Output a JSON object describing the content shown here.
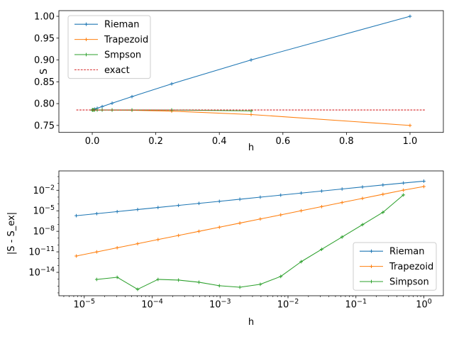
{
  "figure": {
    "background": "#ffffff"
  },
  "palette": {
    "blue": "#1f77b4",
    "orange": "#ff7f0e",
    "green": "#2ca02c",
    "red": "#d62728",
    "axis": "#000000",
    "legend_border": "#cccccc",
    "legend_face": "#ffffff"
  },
  "chart_data": [
    {
      "type": "line",
      "title": "",
      "xlabel": "h",
      "ylabel": "S",
      "xscale": "linear",
      "yscale": "linear",
      "xlim": [
        -0.105,
        1.105
      ],
      "ylim": [
        0.734,
        1.013
      ],
      "grid": false,
      "xticks": {
        "values": [
          0.0,
          0.2,
          0.4,
          0.6,
          0.8,
          1.0
        ],
        "labels": [
          "0.0",
          "0.2",
          "0.4",
          "0.6",
          "0.8",
          "1.0"
        ]
      },
      "yticks": {
        "values": [
          0.75,
          0.8,
          0.85,
          0.9,
          0.95,
          1.0
        ],
        "labels": [
          "0.75",
          "0.80",
          "0.85",
          "0.90",
          "0.95",
          "1.00"
        ]
      },
      "legend": {
        "position": "upper-left"
      },
      "series": [
        {
          "name": "Rieman",
          "color_key": "blue",
          "marker": "+",
          "dash": null,
          "x": [
            1,
            0.5,
            0.25,
            0.125,
            0.0625,
            0.03125,
            0.015625,
            0.0078125,
            0.00390625,
            0.001953125,
            0.0009765625,
            0.00048828125,
            0.000244140625,
            0.0001220703125,
            6.103515625e-05,
            3.0517578125e-05,
            1.52587890625e-05,
            7.62939453125e-06
          ],
          "y": [
            1.0,
            0.9,
            0.8452941,
            0.8159971,
            0.8008604,
            0.79317,
            0.7892943,
            0.7873488,
            0.7863741,
            0.7858863,
            0.7856423,
            0.7855202,
            0.7854592,
            0.7854287,
            0.7854134,
            0.7854058,
            0.785402,
            0.7854001
          ]
        },
        {
          "name": "Trapezoid",
          "color_key": "orange",
          "marker": "+",
          "dash": null,
          "x": [
            1,
            0.5,
            0.25,
            0.125,
            0.0625,
            0.03125,
            0.015625,
            0.0078125,
            0.00390625,
            0.001953125,
            0.0009765625,
            0.00048828125,
            0.000244140625,
            0.0001220703125,
            6.103515625e-05,
            3.0517578125e-05,
            1.52587890625e-05,
            7.62939453125e-06
          ],
          "y": [
            0.75,
            0.775,
            0.7827941,
            0.7847471,
            0.7852354,
            0.7853575,
            0.785388,
            0.7853956,
            0.7853975,
            0.785398,
            0.7853981,
            0.7853982,
            0.7853982,
            0.7853982,
            0.7853982,
            0.7853982,
            0.7853982,
            0.7853982
          ]
        },
        {
          "name": "Smpson",
          "color_key": "green",
          "marker": "+",
          "dash": null,
          "x": [
            0.5,
            0.25,
            0.125,
            0.0625,
            0.03125,
            0.015625,
            0.0078125,
            0.00390625,
            0.001953125,
            0.0009765625,
            0.00048828125,
            0.000244140625,
            0.0001220703125,
            6.103515625e-05,
            3.0517578125e-05,
            1.52587890625e-05
          ],
          "y": [
            0.7833333,
            0.7853922,
            0.7853981,
            0.7853982,
            0.7853982,
            0.7853982,
            0.7853982,
            0.7853982,
            0.7853982,
            0.7853982,
            0.7853982,
            0.7853982,
            0.7853982,
            0.7853982,
            0.7853982,
            0.7853982
          ]
        },
        {
          "name": "exact",
          "color_key": "red",
          "marker": null,
          "dash": [
            2.8,
            1.6
          ],
          "x": [
            -0.05,
            1.05
          ],
          "y": [
            0.7853982,
            0.7853982
          ]
        }
      ]
    },
    {
      "type": "line",
      "title": "",
      "xlabel": "h",
      "ylabel": "|S - S_ex|",
      "xscale": "log",
      "yscale": "log",
      "xlim": [
        4.231e-06,
        1.938
      ],
      "ylim": [
        3.8e-18,
        6.76
      ],
      "grid": false,
      "xticks": {
        "values": [
          1e-05,
          0.0001,
          0.001,
          0.01,
          0.1,
          1
        ],
        "labels": [
          "10^−5",
          "10^−4",
          "10^−3",
          "10^−2",
          "10^−1",
          "10^0"
        ]
      },
      "yticks": {
        "values": [
          0.01,
          1e-05,
          1e-08,
          1e-11,
          1e-14
        ],
        "labels": [
          "10^−2",
          "10^−5",
          "10^−8",
          "10^−11",
          "10^−14"
        ]
      },
      "legend": {
        "position": "center-right"
      },
      "series": [
        {
          "name": "Rieman",
          "color_key": "blue",
          "marker": "+",
          "dash": null,
          "x": [
            1,
            0.5,
            0.25,
            0.125,
            0.0625,
            0.03125,
            0.015625,
            0.0078125,
            0.00390625,
            0.001953125,
            0.0009765625,
            0.00048828125,
            0.000244140625,
            0.0001220703125,
            6.103515625e-05,
            3.0517578125e-05,
            1.52587890625e-05,
            7.62939453125e-06
          ],
          "y": [
            0.2146018,
            0.1146018,
            0.0598959,
            0.030599,
            0.0154622,
            0.0077718,
            0.0038961,
            0.0019506,
            0.0009759,
            0.00048812,
            0.0002441,
            0.00012206,
            6.1032e-05,
            3.0516e-05,
            1.5258e-05,
            7.6293e-06,
            3.8147e-06,
            1.9073e-06
          ]
        },
        {
          "name": "Trapezoid",
          "color_key": "orange",
          "marker": "+",
          "dash": null,
          "x": [
            1,
            0.5,
            0.25,
            0.125,
            0.0625,
            0.03125,
            0.015625,
            0.0078125,
            0.00390625,
            0.001953125,
            0.0009765625,
            0.00048828125,
            0.000244140625,
            0.0001220703125,
            6.103515625e-05,
            3.0517578125e-05,
            1.52587890625e-05,
            7.62939453125e-06
          ],
          "y": [
            0.0353982,
            0.0103982,
            0.0026041,
            0.00065104,
            0.00016276,
            4.069e-05,
            1.0173e-05,
            2.5431e-06,
            6.3578e-07,
            1.5894e-07,
            3.9736e-08,
            9.9341e-09,
            2.4835e-09,
            6.2088e-10,
            1.5522e-10,
            3.8805e-11,
            9.7013e-12,
            2.4253e-12
          ]
        },
        {
          "name": "Simpson",
          "color_key": "green",
          "marker": "+",
          "dash": null,
          "x": [
            0.5,
            0.25,
            0.125,
            0.0625,
            0.03125,
            0.015625,
            0.0078125,
            0.00390625,
            0.001953125,
            0.0009765625,
            0.00048828125,
            0.000244140625,
            0.0001220703125,
            6.103515625e-05,
            3.0517578125e-05,
            1.52587890625e-05
          ],
          "y": [
            0.0020648,
            6.01e-06,
            9.4e-08,
            1.47e-09,
            2.3e-11,
            3.6e-13,
            2.5e-15,
            1.8e-16,
            6.7e-17,
            1.1e-16,
            3.6e-16,
            7.4e-16,
            9.3e-16,
            3.3e-17,
            1.9e-15,
            9.3e-16
          ]
        }
      ]
    }
  ]
}
